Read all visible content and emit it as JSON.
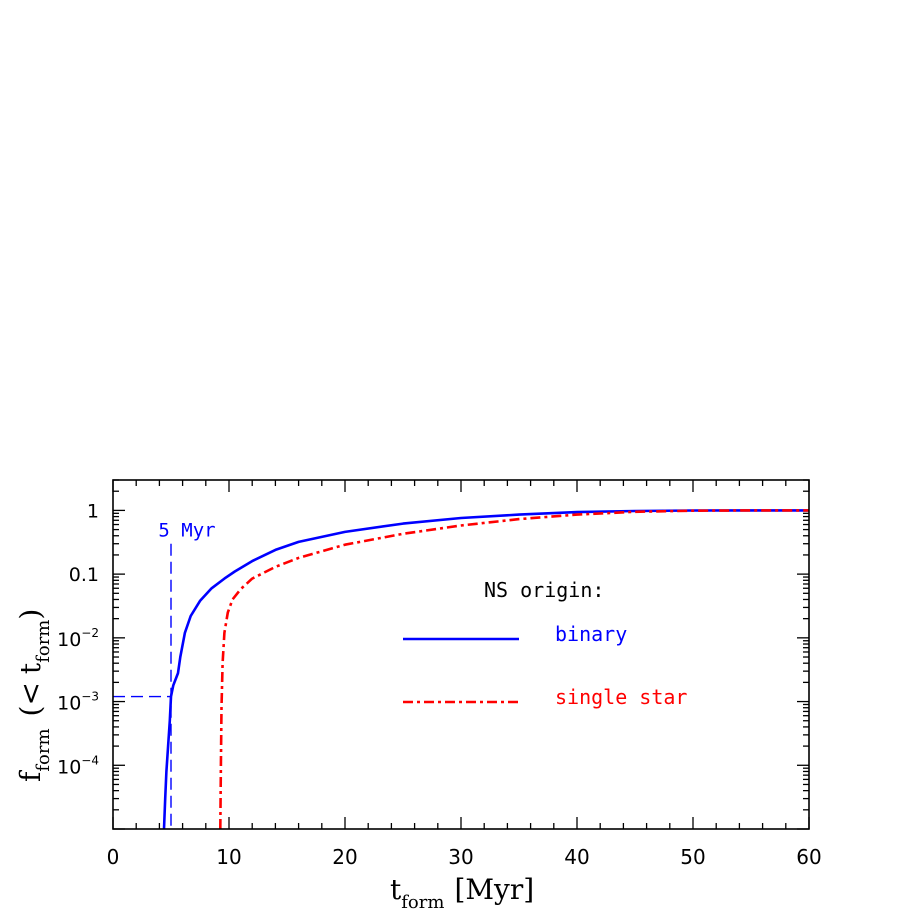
{
  "chart_data": {
    "type": "line",
    "xlabel": {
      "main": "t",
      "sub": "form",
      "unit": "[Myr]"
    },
    "ylabel": {
      "main": "f",
      "sub": "form",
      "paren_open": "(<",
      "inner_main": "t",
      "inner_sub": "form",
      "paren_close": ")"
    },
    "xlim": [
      0,
      60
    ],
    "ylim": [
      1e-05,
      3
    ],
    "y_scale": "log",
    "grid": false,
    "x_ticks": [
      {
        "value": 0,
        "label": "0"
      },
      {
        "value": 10,
        "label": "10"
      },
      {
        "value": 20,
        "label": "20"
      },
      {
        "value": 30,
        "label": "30"
      },
      {
        "value": 40,
        "label": "40"
      },
      {
        "value": 50,
        "label": "50"
      },
      {
        "value": 60,
        "label": "60"
      }
    ],
    "y_ticks": [
      {
        "value": 1,
        "label": "1"
      },
      {
        "value": 0.1,
        "label": "0.1"
      },
      {
        "value": 0.01,
        "base": "10",
        "exp": "−2"
      },
      {
        "value": 0.001,
        "base": "10",
        "exp": "−3"
      },
      {
        "value": 0.0001,
        "base": "10",
        "exp": "−4"
      }
    ],
    "legend": {
      "title": "NS origin:",
      "placement": "center-right"
    },
    "series": [
      {
        "name": "binary",
        "color": "#0000ff",
        "style": "solid",
        "points": [
          [
            4.4,
            1e-05
          ],
          [
            4.5,
            3e-05
          ],
          [
            4.6,
            8e-05
          ],
          [
            4.75,
            0.0002
          ],
          [
            4.9,
            0.0005
          ],
          [
            5.0,
            0.0012
          ],
          [
            5.2,
            0.0018
          ],
          [
            5.6,
            0.0028
          ],
          [
            5.8,
            0.005
          ],
          [
            6.2,
            0.012
          ],
          [
            6.7,
            0.022
          ],
          [
            7.5,
            0.038
          ],
          [
            8.5,
            0.06
          ],
          [
            9.6,
            0.085
          ],
          [
            10.5,
            0.11
          ],
          [
            12,
            0.16
          ],
          [
            14,
            0.24
          ],
          [
            16,
            0.32
          ],
          [
            20,
            0.46
          ],
          [
            25,
            0.62
          ],
          [
            30,
            0.76
          ],
          [
            35,
            0.86
          ],
          [
            40,
            0.94
          ],
          [
            45,
            0.98
          ],
          [
            50,
            0.995
          ],
          [
            55,
            1.0
          ],
          [
            60,
            1.0
          ]
        ]
      },
      {
        "name": "single star",
        "color": "#ff0000",
        "style": "dash-dot",
        "points": [
          [
            9.25,
            1e-05
          ],
          [
            9.3,
            0.0001
          ],
          [
            9.35,
            0.0008
          ],
          [
            9.45,
            0.004
          ],
          [
            9.6,
            0.012
          ],
          [
            9.9,
            0.025
          ],
          [
            10.3,
            0.04
          ],
          [
            11,
            0.058
          ],
          [
            12,
            0.085
          ],
          [
            14,
            0.13
          ],
          [
            16,
            0.18
          ],
          [
            20,
            0.29
          ],
          [
            25,
            0.43
          ],
          [
            30,
            0.58
          ],
          [
            35,
            0.73
          ],
          [
            40,
            0.86
          ],
          [
            45,
            0.95
          ],
          [
            50,
            0.99
          ],
          [
            55,
            1.0
          ],
          [
            60,
            1.0
          ]
        ]
      }
    ],
    "annotations": [
      {
        "text": "5 Myr",
        "color": "#0000ff",
        "x": 5,
        "y": 0.3,
        "h_line_y": 0.0012
      }
    ]
  }
}
